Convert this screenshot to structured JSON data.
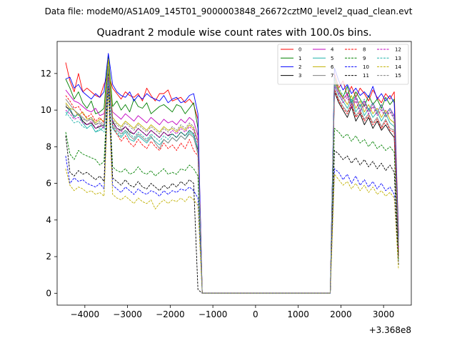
{
  "suptitle": "Data file: modeM0/AS1A09_145T01_9000003848_26672cztM0_level2_quad_clean.evt",
  "chart_data": {
    "type": "line",
    "title": "Quadrant 2 module wise count rates with 100.0s bins.",
    "xlabel": "",
    "ylabel": "",
    "offset_label": "+3.368e8",
    "xlim": [
      -4650,
      3650
    ],
    "ylim": [
      -0.65,
      13.75
    ],
    "xticks": [
      -4000,
      -3000,
      -2000,
      -1000,
      0,
      1000,
      2000,
      3000
    ],
    "xtick_labels": [
      "−4000",
      "−3000",
      "−2000",
      "−1000",
      "0",
      "1000",
      "2000",
      "3000"
    ],
    "yticks": [
      0,
      2,
      4,
      6,
      8,
      10,
      12
    ],
    "ytick_labels": [
      "0",
      "2",
      "4",
      "6",
      "8",
      "10",
      "12"
    ],
    "legend_loc": "top-right",
    "legend_ncol": 4,
    "gap": {
      "start": -1250,
      "end": 1750,
      "value": 0
    },
    "bins": {
      "seg1_start": -4450,
      "seg1_step": 100,
      "seg1_count": 32,
      "seg2_start": 1750,
      "seg2_step": 100,
      "seg2_count": 16
    },
    "series": [
      {
        "name": "0",
        "color": "#ff0000",
        "dash": "solid",
        "pre": [
          12.6,
          11.6,
          11.0,
          12.0,
          11.0,
          11.2,
          11.0,
          10.8,
          10.7,
          11.4,
          12.0,
          11.2,
          10.9,
          10.6,
          11.0,
          10.8,
          10.7,
          10.9,
          10.5,
          11.2,
          10.8,
          10.5,
          10.9,
          10.9,
          11.1,
          10.5,
          10.6,
          10.7,
          10.4,
          10.6,
          10.3,
          9.5
        ],
        "post": [
          12.0,
          11.2,
          11.6,
          10.8,
          11.3,
          10.7,
          11.2,
          10.9,
          10.5,
          11.1,
          10.7,
          10.4,
          10.9,
          10.6,
          11.0,
          3.2
        ]
      },
      {
        "name": "1",
        "color": "#008000",
        "dash": "solid",
        "pre": [
          11.7,
          11.2,
          10.6,
          11.0,
          10.4,
          10.1,
          10.5,
          9.8,
          9.9,
          10.1,
          13.0,
          10.2,
          10.5,
          10.0,
          10.3,
          9.9,
          10.6,
          10.2,
          10.1,
          10.4,
          9.8,
          10.0,
          10.2,
          10.3,
          10.1,
          9.9,
          10.3,
          10.2,
          9.8,
          10.1,
          10.4,
          9.0
        ],
        "post": [
          11.8,
          11.0,
          10.7,
          11.3,
          10.4,
          11.0,
          10.6,
          10.2,
          10.8,
          10.3,
          10.6,
          10.1,
          10.7,
          10.3,
          10.6,
          2.9
        ]
      },
      {
        "name": "2",
        "color": "#0000ff",
        "dash": "solid",
        "pre": [
          11.7,
          11.8,
          11.2,
          11.4,
          11.0,
          10.8,
          10.6,
          10.9,
          10.7,
          11.0,
          13.1,
          11.4,
          11.0,
          10.8,
          10.7,
          11.0,
          10.5,
          10.8,
          10.6,
          10.9,
          10.7,
          10.6,
          10.5,
          10.8,
          10.4,
          10.6,
          10.7,
          10.4,
          10.5,
          10.8,
          10.9,
          9.8
        ],
        "post": [
          12.3,
          11.6,
          11.1,
          11.4,
          10.9,
          11.2,
          10.8,
          11.0,
          10.7,
          11.3,
          10.6,
          10.9,
          10.5,
          10.8,
          10.4,
          3.0
        ]
      },
      {
        "name": "3",
        "color": "#000000",
        "dash": "solid",
        "pre": [
          10.2,
          10.0,
          9.6,
          9.8,
          9.4,
          9.2,
          9.3,
          9.0,
          9.1,
          9.2,
          12.2,
          9.4,
          9.0,
          8.9,
          9.1,
          8.8,
          8.7,
          9.0,
          8.8,
          8.6,
          8.9,
          8.7,
          8.5,
          8.8,
          8.6,
          8.7,
          8.5,
          8.8,
          8.6,
          8.9,
          8.7,
          7.8
        ],
        "post": [
          11.0,
          10.4,
          10.0,
          9.6,
          10.2,
          9.4,
          9.8,
          9.2,
          9.6,
          9.0,
          9.4,
          8.9,
          9.2,
          8.8,
          8.5,
          2.2
        ]
      },
      {
        "name": "4",
        "color": "#c000c0",
        "dash": "solid",
        "pre": [
          11.1,
          10.8,
          10.5,
          10.4,
          10.2,
          10.0,
          9.9,
          10.1,
          9.7,
          9.8,
          11.3,
          9.9,
          9.7,
          9.5,
          9.8,
          9.6,
          9.4,
          9.7,
          9.5,
          9.3,
          9.6,
          9.4,
          9.2,
          9.5,
          9.3,
          9.4,
          9.2,
          9.5,
          9.3,
          9.6,
          9.4,
          8.6
        ],
        "post": [
          11.5,
          11.0,
          10.6,
          10.9,
          10.3,
          10.7,
          10.2,
          10.5,
          10.0,
          10.4,
          9.9,
          10.3,
          9.8,
          10.1,
          9.7,
          2.6
        ]
      },
      {
        "name": "5",
        "color": "#20b2aa",
        "dash": "solid",
        "pre": [
          9.7,
          10.1,
          9.6,
          9.8,
          9.3,
          9.0,
          9.2,
          8.8,
          8.9,
          9.1,
          12.1,
          9.0,
          8.7,
          8.5,
          8.8,
          8.4,
          8.3,
          8.6,
          8.4,
          8.2,
          8.5,
          8.3,
          8.1,
          8.4,
          8.2,
          8.5,
          8.3,
          8.6,
          8.4,
          8.8,
          8.6,
          7.9
        ],
        "post": [
          11.4,
          10.8,
          10.5,
          10.1,
          10.6,
          9.9,
          10.3,
          9.7,
          10.1,
          9.6,
          9.9,
          9.4,
          9.8,
          9.3,
          9.1,
          2.4
        ]
      },
      {
        "name": "6",
        "color": "#c0b000",
        "dash": "solid",
        "pre": [
          10.4,
          10.1,
          10.0,
          9.7,
          9.9,
          9.5,
          9.6,
          9.3,
          9.5,
          9.4,
          12.8,
          9.6,
          9.3,
          9.1,
          9.4,
          9.2,
          9.0,
          9.3,
          9.1,
          8.9,
          9.2,
          9.0,
          8.8,
          9.1,
          8.9,
          9.0,
          8.8,
          9.1,
          8.9,
          9.2,
          9.0,
          8.3
        ],
        "post": [
          11.6,
          11.1,
          10.7,
          10.3,
          10.8,
          10.1,
          10.5,
          9.9,
          10.3,
          9.8,
          10.1,
          9.6,
          10.0,
          9.5,
          9.3,
          2.3
        ]
      },
      {
        "name": "7",
        "color": "#808080",
        "dash": "solid",
        "pre": [
          10.6,
          10.3,
          10.0,
          9.8,
          9.6,
          9.4,
          9.5,
          9.2,
          9.3,
          9.1,
          12.4,
          9.2,
          8.9,
          8.7,
          8.9,
          8.6,
          8.4,
          8.7,
          8.5,
          8.3,
          8.6,
          8.2,
          7.9,
          8.4,
          8.2,
          8.5,
          8.3,
          8.6,
          8.4,
          8.7,
          8.5,
          7.6
        ],
        "post": [
          11.2,
          10.6,
          10.2,
          9.9,
          10.4,
          9.7,
          10.0,
          9.5,
          9.8,
          9.3,
          9.6,
          9.1,
          9.5,
          9.0,
          8.9,
          2.1
        ]
      },
      {
        "name": "8",
        "color": "#ff0000",
        "dash": "dashed",
        "pre": [
          10.8,
          10.5,
          10.1,
          10.2,
          9.8,
          9.6,
          9.8,
          9.4,
          9.6,
          9.3,
          11.9,
          9.1,
          8.7,
          8.3,
          8.6,
          8.2,
          8.0,
          8.4,
          8.1,
          7.9,
          8.3,
          8.0,
          7.8,
          8.2,
          7.9,
          8.1,
          7.8,
          8.2,
          7.9,
          8.4,
          7.8,
          7.5
        ],
        "post": [
          11.1,
          10.5,
          10.1,
          9.8,
          10.3,
          9.6,
          9.9,
          9.4,
          9.7,
          9.2,
          9.5,
          9.0,
          9.4,
          8.9,
          8.8,
          2.0
        ]
      },
      {
        "name": "9",
        "color": "#008000",
        "dash": "dashed",
        "pre": [
          8.8,
          7.6,
          7.3,
          7.8,
          7.6,
          7.5,
          7.4,
          7.3,
          7.0,
          7.2,
          12.0,
          6.9,
          6.7,
          6.6,
          6.8,
          6.5,
          6.6,
          6.9,
          6.6,
          6.5,
          6.7,
          6.4,
          6.6,
          6.8,
          6.5,
          6.6,
          6.5,
          6.8,
          6.7,
          7.0,
          6.8,
          6.4
        ],
        "post": [
          9.0,
          8.8,
          8.5,
          8.7,
          8.3,
          8.6,
          8.2,
          8.4,
          8.0,
          8.3,
          7.9,
          8.1,
          7.8,
          8.0,
          7.7,
          1.8
        ]
      },
      {
        "name": "10",
        "color": "#0000ff",
        "dash": "dashed",
        "pre": [
          7.5,
          6.0,
          6.3,
          6.1,
          6.2,
          6.0,
          5.9,
          5.8,
          6.0,
          5.7,
          11.3,
          5.9,
          5.7,
          5.5,
          5.8,
          5.6,
          5.4,
          5.7,
          5.5,
          5.4,
          5.6,
          5.5,
          5.3,
          5.6,
          5.4,
          5.6,
          5.5,
          5.7,
          5.6,
          5.8,
          5.6,
          5.2
        ],
        "post": [
          6.8,
          6.6,
          6.2,
          6.5,
          6.0,
          6.4,
          5.9,
          6.2,
          5.8,
          6.1,
          5.7,
          6.0,
          5.6,
          5.8,
          5.4,
          1.6
        ]
      },
      {
        "name": "11",
        "color": "#000000",
        "dash": "dashed",
        "pre": [
          8.6,
          6.6,
          6.4,
          6.7,
          6.5,
          6.6,
          6.4,
          6.2,
          6.4,
          6.1,
          12.0,
          6.3,
          6.1,
          5.9,
          6.2,
          5.9,
          5.8,
          6.1,
          5.8,
          5.7,
          6.0,
          5.8,
          5.6,
          5.9,
          5.7,
          6.0,
          5.8,
          6.1,
          5.9,
          6.2,
          6.0,
          0.2
        ],
        "post": [
          7.8,
          7.6,
          7.3,
          7.5,
          7.1,
          7.4,
          7.0,
          7.3,
          6.9,
          7.2,
          6.8,
          7.1,
          6.7,
          7.0,
          6.6,
          1.5
        ]
      },
      {
        "name": "12",
        "color": "#c000c0",
        "dash": "dashed",
        "pre": [
          10.0,
          9.8,
          9.5,
          9.6,
          9.3,
          9.2,
          9.4,
          9.0,
          9.2,
          9.0,
          11.8,
          9.3,
          9.0,
          8.8,
          9.1,
          8.9,
          8.7,
          9.0,
          8.8,
          8.6,
          8.9,
          8.7,
          8.5,
          8.8,
          8.6,
          8.9,
          8.7,
          9.0,
          8.8,
          9.1,
          8.9,
          8.1
        ],
        "post": [
          11.3,
          10.9,
          10.4,
          10.7,
          10.1,
          10.5,
          9.9,
          10.3,
          9.8,
          10.2,
          9.7,
          10.0,
          9.6,
          9.9,
          9.5,
          2.5
        ]
      },
      {
        "name": "13",
        "color": "#20b2aa",
        "dash": "dashed",
        "pre": [
          9.9,
          9.6,
          9.3,
          9.4,
          9.1,
          9.0,
          9.2,
          8.8,
          9.0,
          8.8,
          11.6,
          9.1,
          8.8,
          8.6,
          8.9,
          8.7,
          8.5,
          8.8,
          8.6,
          8.4,
          8.7,
          8.5,
          8.3,
          8.6,
          8.4,
          8.7,
          8.5,
          8.8,
          8.6,
          8.9,
          8.7,
          7.9
        ],
        "post": [
          11.7,
          11.2,
          10.8,
          11.0,
          10.4,
          10.8,
          10.2,
          10.6,
          10.0,
          10.4,
          9.9,
          10.3,
          9.7,
          10.1,
          9.6,
          2.7
        ]
      },
      {
        "name": "14",
        "color": "#c0b000",
        "dash": "dashed",
        "pre": [
          6.8,
          5.9,
          5.6,
          5.8,
          5.7,
          5.5,
          5.6,
          5.4,
          5.5,
          5.3,
          11.2,
          5.4,
          5.2,
          5.1,
          5.3,
          5.1,
          4.9,
          5.2,
          5.0,
          4.9,
          5.1,
          4.6,
          4.9,
          5.1,
          4.9,
          5.1,
          5.0,
          5.2,
          5.0,
          5.3,
          5.1,
          4.8
        ],
        "post": [
          6.5,
          6.2,
          5.9,
          6.1,
          5.7,
          6.0,
          5.6,
          5.9,
          5.5,
          5.8,
          5.4,
          5.6,
          5.3,
          5.5,
          5.2,
          1.3
        ]
      },
      {
        "name": "15",
        "color": "#808080",
        "dash": "dashed",
        "pre": [
          10.3,
          10.0,
          9.7,
          9.8,
          9.5,
          9.4,
          9.6,
          9.2,
          9.4,
          9.2,
          12.0,
          9.5,
          9.2,
          9.0,
          9.3,
          9.1,
          8.9,
          9.2,
          9.0,
          8.8,
          9.1,
          8.9,
          8.7,
          9.0,
          8.8,
          9.1,
          8.9,
          9.2,
          9.0,
          9.3,
          9.1,
          8.3
        ],
        "post": [
          11.5,
          11.0,
          10.6,
          10.8,
          10.2,
          10.6,
          10.0,
          10.4,
          9.9,
          10.3,
          9.8,
          10.1,
          9.6,
          10.0,
          9.5,
          2.6
        ]
      }
    ]
  }
}
